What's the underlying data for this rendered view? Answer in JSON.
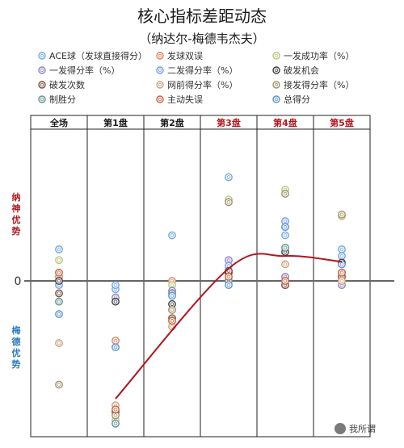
{
  "chart_data": {
    "type": "scatter",
    "title": "核心指标差距动态",
    "subtitle": "（纳达尔-梅德韦杰夫）",
    "zero_label": "0",
    "side_labels": {
      "top": [
        "纳",
        "神",
        "优",
        "势"
      ],
      "bottom": [
        "梅",
        "德",
        "优",
        "势"
      ],
      "top_color": "#b0171f",
      "bottom_color": "#2a7bbf"
    },
    "columns": [
      {
        "label": "全场",
        "color": "#1a1a1a"
      },
      {
        "label": "第1盘",
        "color": "#1a1a1a"
      },
      {
        "label": "第2盘",
        "color": "#1a1a1a"
      },
      {
        "label": "第3盘",
        "color": "#b0171f"
      },
      {
        "label": "第4盘",
        "color": "#b0171f"
      },
      {
        "label": "第5盘",
        "color": "#b0171f"
      }
    ],
    "ylim": [
      -180,
      140
    ],
    "series": [
      {
        "name": "ACE球（发球直接得分）",
        "color": "#6fa8dc",
        "values": [
          38,
          -10,
          55,
          125,
          55,
          38
        ]
      },
      {
        "name": "发球双误",
        "color": "#e08060",
        "values": [
          5,
          -72,
          0,
          0,
          -5,
          5
        ]
      },
      {
        "name": "一发成功率（%）",
        "color": "#b5c87a",
        "values": [
          25,
          -168,
          -5,
          98,
          110,
          78
        ]
      },
      {
        "name": "一发得分率（%）",
        "color": "#8e7cc3",
        "values": [
          0,
          -20,
          -12,
          25,
          5,
          -5
        ]
      },
      {
        "name": "二发得分率（%）",
        "color": "#6d9eeb",
        "values": [
          -5,
          -5,
          -35,
          18,
          72,
          30
        ]
      },
      {
        "name": "破发机会",
        "color": "#3d3d3d",
        "values": [
          0,
          -25,
          -28,
          10,
          35,
          22
        ]
      },
      {
        "name": "破发次数",
        "color": "#7a4a3a",
        "values": [
          -15,
          -158,
          -45,
          12,
          -5,
          5
        ]
      },
      {
        "name": "网前得分率（%）",
        "color": "#c9a07a",
        "values": [
          -75,
          -150,
          -55,
          0,
          20,
          0
        ]
      },
      {
        "name": "接发得分率（%）",
        "color": "#a0906a",
        "values": [
          -125,
          -162,
          -35,
          95,
          105,
          80
        ]
      },
      {
        "name": "制胜分",
        "color": "#5f8f8f",
        "values": [
          -25,
          -172,
          -15,
          0,
          40,
          10
        ]
      },
      {
        "name": "主动失误",
        "color": "#c6603a",
        "values": [
          10,
          -155,
          -48,
          5,
          0,
          10
        ]
      },
      {
        "name": "总得分",
        "color": "#5b8fd1",
        "values": [
          -40,
          -80,
          -18,
          -5,
          65,
          20
        ]
      }
    ],
    "trend": {
      "color": "#b0171f",
      "points": [
        [
          1,
          -142
        ],
        [
          3,
          15
        ],
        [
          4,
          30
        ],
        [
          5,
          23
        ]
      ]
    }
  },
  "watermark": "我所谓"
}
